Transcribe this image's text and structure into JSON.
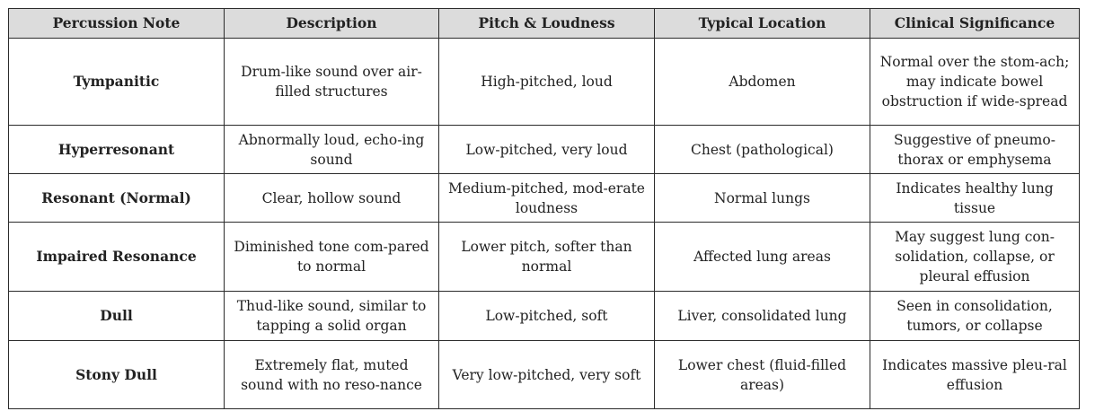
{
  "table": {
    "headers": [
      "Percussion Note",
      "Description",
      "Pitch & Loudness",
      "Typical Location",
      "Clinical Significance"
    ],
    "rows": [
      [
        "Tympanitic",
        "Drum-like sound over air-filled structures",
        "High-pitched, loud",
        "Abdomen",
        "Normal over the stom-ach; may indicate bowel obstruction if wide-spread"
      ],
      [
        "Hyperresonant",
        "Abnormally loud, echo-ing sound",
        "Low-pitched, very loud",
        "Chest (pathological)",
        "Suggestive of pneumo-thorax or emphysema"
      ],
      [
        "Resonant (Normal)",
        "Clear, hollow sound",
        "Medium-pitched, mod-erate loudness",
        "Normal lungs",
        "Indicates healthy lung tissue"
      ],
      [
        "Impaired Resonance",
        "Diminished tone com-pared to normal",
        "Lower pitch, softer than normal",
        "Affected lung areas",
        "May suggest lung con-solidation, collapse, or pleural effusion"
      ],
      [
        "Dull",
        "Thud-like sound, similar to tapping a solid organ",
        "Low-pitched, soft",
        "Liver, consolidated lung",
        "Seen in consolidation, tumors, or collapse"
      ],
      [
        "Stony Dull",
        "Extremely flat, muted sound with no reso-nance",
        "Very low-pitched, very soft",
        "Lower chest (fluid-filled areas)",
        "Indicates massive pleu-ral effusion"
      ]
    ]
  },
  "colors": {
    "header_background": "#dcdcdc",
    "border": "#2b2b2b",
    "text": "#222222"
  }
}
